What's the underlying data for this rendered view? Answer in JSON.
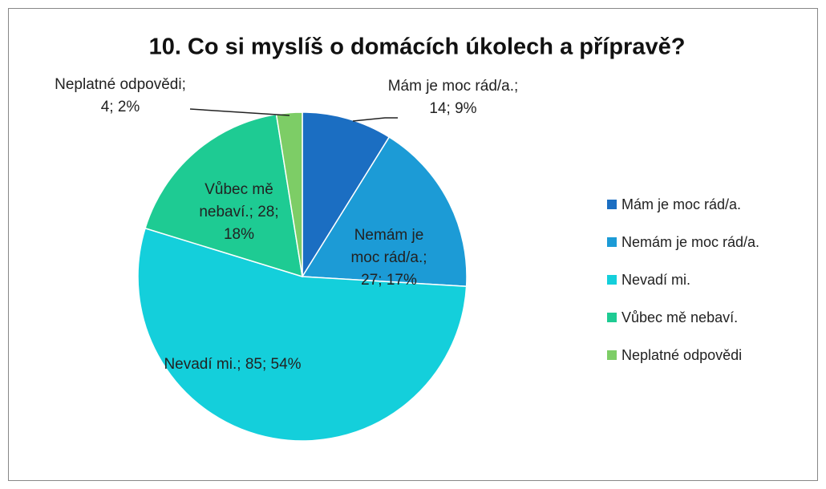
{
  "chart_data": {
    "type": "pie",
    "title": "10. Co si myslíš o domácích úkolech a přípravě?",
    "categories": [
      "Mám je moc rád/a.",
      "Nemám je moc rád/a.",
      "Nevadí mi.",
      "Vůbec mě nebaví.",
      "Neplatné odpovědi"
    ],
    "values": [
      14,
      27,
      85,
      28,
      4
    ],
    "value_labels": [
      "Mám je moc rád/a.; 14; 9%",
      "Nemám je moc rád/a.; 27; 17%",
      "Nevadí mi.; 85; 54%",
      "Vůbec mě nebaví.; 28; 18%",
      "Neplatné odpovědi; 4; 2%"
    ],
    "colors": [
      "#1b6ec2",
      "#1c9bd6",
      "#14cfdb",
      "#1ecb93",
      "#7dcd66"
    ],
    "legend": "right"
  }
}
